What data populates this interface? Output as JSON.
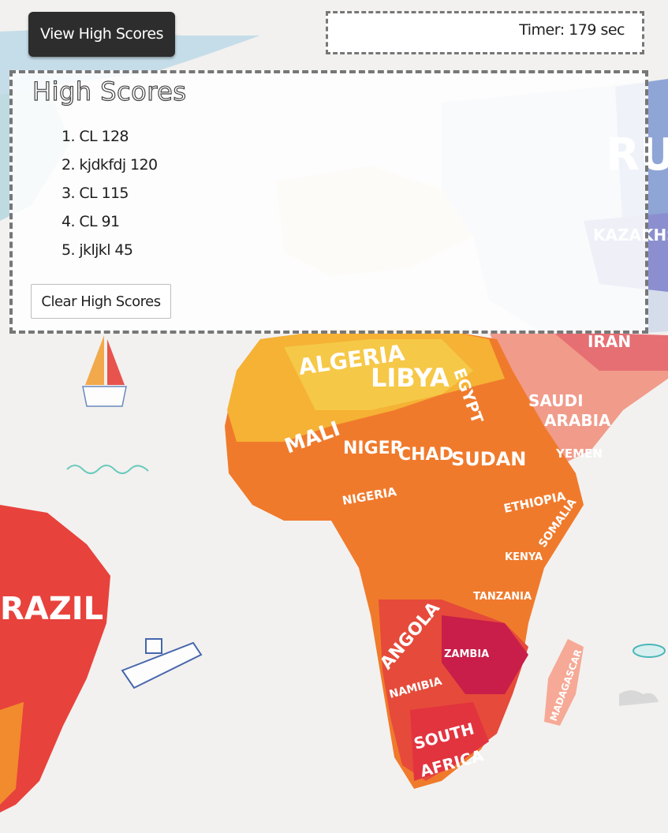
{
  "toolbar": {
    "view_high_scores_label": "View High Scores"
  },
  "timer": {
    "text": "Timer: 179 sec"
  },
  "high_scores": {
    "title": "High Scores",
    "entries": [
      "1. CL 128",
      "2. kjdkfdj 120",
      "3. CL 115",
      "4. CL 91",
      "5. jkljkl 45"
    ],
    "clear_label": "Clear High Scores"
  },
  "map": {
    "labels": {
      "algeria": "ALGERIA",
      "libya": "LIBYA",
      "egypt": "EGYPT",
      "saudi_arabia_1": "SAUDI",
      "saudi_arabia_2": "ARABIA",
      "yemen": "YEMEN",
      "mali": "MALI",
      "niger": "NIGER",
      "chad": "CHAD",
      "sudan": "SUDAN",
      "nigeria": "NIGERIA",
      "ethiopia": "ETHIOPIA",
      "somalia": "SOMALIA",
      "kenya": "KENYA",
      "tanzania": "TANZANIA",
      "angola": "ANGOLA",
      "zambia": "ZAMBIA",
      "namibia": "NAMIBIA",
      "south_africa_1": "SOUTH",
      "south_africa_2": "AFRICA",
      "madagascar": "MADAGASCAR",
      "brazil": "RAZIL",
      "iran": "IRAN",
      "kazakhstan": "KAZAKHS",
      "russia": "RU"
    },
    "colors": {
      "africa_north": "#f3a23a",
      "africa_central": "#f07a2c",
      "africa_south": "#e2343f",
      "south_america": "#e8423c",
      "arabia": "#f19b8a",
      "ocean_bg": "#f2f1ef",
      "europe": "#e9d9a8",
      "russia": "#8ea5d6"
    }
  }
}
